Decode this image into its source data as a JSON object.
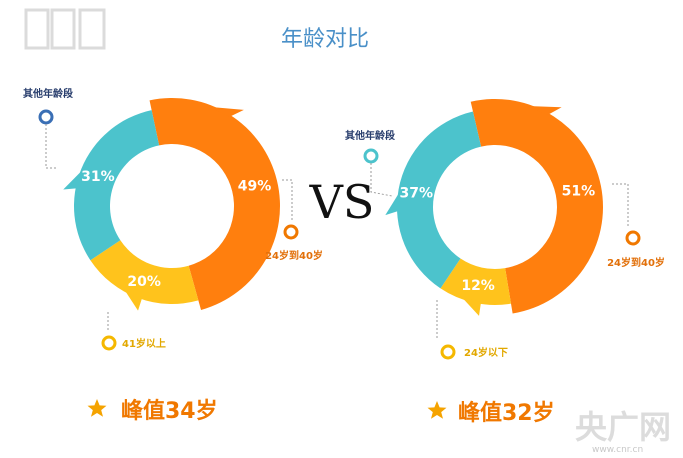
{
  "title": "年龄对比",
  "vs": "VS",
  "watermark": "央广网",
  "watermark_sub": "www.cnr.cn",
  "colors": {
    "orange": "#ff7f0e",
    "teal": "#4cc3cc",
    "yellow": "#ffc31c",
    "title": "#4a90c8"
  },
  "chart_data": [
    {
      "type": "pie",
      "donut": true,
      "categories": [
        "24岁到40岁",
        "41岁以上",
        "其他年龄段"
      ],
      "values": [
        49,
        20,
        31
      ],
      "labels": [
        "49%",
        "20%",
        "31%"
      ],
      "peak": "峰值34岁"
    },
    {
      "type": "pie",
      "donut": true,
      "categories": [
        "24岁到40岁",
        "24岁以下",
        "其他年龄段"
      ],
      "values": [
        51,
        12,
        37
      ],
      "labels": [
        "51%",
        "12%",
        "37%"
      ],
      "peak": "峰值32岁"
    }
  ]
}
